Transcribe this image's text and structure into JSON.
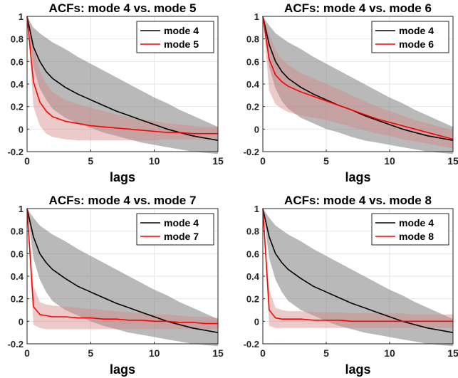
{
  "chart_data": [
    {
      "type": "line",
      "title": "ACFs: mode 4 vs. mode 5",
      "xlabel": "lags",
      "ylabel": "",
      "xlim": [
        0,
        15
      ],
      "ylim": [
        -0.2,
        1
      ],
      "xticks": [
        0,
        5,
        10,
        15
      ],
      "yticks": [
        -0.2,
        0,
        0.2,
        0.4,
        0.6,
        0.8,
        1
      ],
      "grid": true,
      "legend_position": "top-right",
      "x": [
        0,
        0.5,
        1,
        1.5,
        2,
        3,
        4,
        5,
        6,
        7,
        8,
        9,
        10,
        11,
        12,
        13,
        14,
        15
      ],
      "series": [
        {
          "name": "mode 4",
          "color": "#000000",
          "band_color": "#7f7f7f",
          "values": [
            1.0,
            0.73,
            0.6,
            0.51,
            0.45,
            0.37,
            0.31,
            0.26,
            0.21,
            0.16,
            0.12,
            0.08,
            0.04,
            0.0,
            -0.03,
            -0.06,
            -0.08,
            -0.1
          ],
          "lower": [
            1.0,
            0.55,
            0.36,
            0.26,
            0.18,
            0.1,
            0.05,
            0.01,
            -0.03,
            -0.06,
            -0.09,
            -0.12,
            -0.14,
            -0.16,
            -0.18,
            -0.2,
            -0.21,
            -0.22
          ],
          "upper": [
            1.0,
            0.9,
            0.85,
            0.81,
            0.77,
            0.71,
            0.64,
            0.58,
            0.52,
            0.46,
            0.4,
            0.34,
            0.28,
            0.23,
            0.17,
            0.12,
            0.07,
            0.02
          ]
        },
        {
          "name": "mode 5",
          "color": "#ff0000",
          "band_color": "#d48a8a",
          "values": [
            1.0,
            0.42,
            0.24,
            0.16,
            0.11,
            0.07,
            0.05,
            0.03,
            0.02,
            0.01,
            0.0,
            -0.01,
            -0.02,
            -0.03,
            -0.03,
            -0.04,
            -0.04,
            -0.04
          ],
          "lower": [
            1.0,
            0.2,
            0.03,
            -0.04,
            -0.07,
            -0.09,
            -0.1,
            -0.1,
            -0.1,
            -0.1,
            -0.1,
            -0.1,
            -0.1,
            -0.09,
            -0.09,
            -0.09,
            -0.09,
            -0.09
          ],
          "upper": [
            1.0,
            0.72,
            0.52,
            0.4,
            0.33,
            0.26,
            0.22,
            0.19,
            0.16,
            0.13,
            0.11,
            0.09,
            0.07,
            0.05,
            0.04,
            0.03,
            0.02,
            0.02
          ]
        }
      ]
    },
    {
      "type": "line",
      "title": "ACFs: mode 4 vs. mode 6",
      "xlabel": "lags",
      "ylabel": "",
      "xlim": [
        0,
        15
      ],
      "ylim": [
        -0.2,
        1
      ],
      "xticks": [
        0,
        5,
        10,
        15
      ],
      "yticks": [
        -0.2,
        0,
        0.2,
        0.4,
        0.6,
        0.8,
        1
      ],
      "grid": true,
      "legend_position": "top-right",
      "x": [
        0,
        0.5,
        1,
        1.5,
        2,
        3,
        4,
        5,
        6,
        7,
        8,
        9,
        10,
        11,
        12,
        13,
        14,
        15
      ],
      "series": [
        {
          "name": "mode 4",
          "color": "#000000",
          "band_color": "#7f7f7f",
          "values": [
            1.0,
            0.75,
            0.6,
            0.51,
            0.45,
            0.37,
            0.31,
            0.26,
            0.21,
            0.17,
            0.12,
            0.08,
            0.04,
            0.0,
            -0.03,
            -0.06,
            -0.08,
            -0.1
          ],
          "lower": [
            1.0,
            0.55,
            0.36,
            0.25,
            0.18,
            0.1,
            0.05,
            0.0,
            -0.03,
            -0.07,
            -0.1,
            -0.12,
            -0.14,
            -0.16,
            -0.18,
            -0.2,
            -0.21,
            -0.22
          ],
          "upper": [
            1.0,
            0.92,
            0.85,
            0.81,
            0.77,
            0.71,
            0.64,
            0.58,
            0.52,
            0.46,
            0.4,
            0.34,
            0.28,
            0.23,
            0.17,
            0.12,
            0.07,
            0.02
          ]
        },
        {
          "name": "mode 6",
          "color": "#ff0000",
          "band_color": "#d48a8a",
          "values": [
            1.0,
            0.62,
            0.48,
            0.42,
            0.38,
            0.33,
            0.29,
            0.25,
            0.21,
            0.17,
            0.13,
            0.09,
            0.06,
            0.03,
            0.0,
            -0.03,
            -0.06,
            -0.09
          ],
          "lower": [
            1.0,
            0.34,
            0.22,
            0.18,
            0.15,
            0.12,
            0.1,
            0.08,
            0.05,
            0.02,
            -0.01,
            -0.04,
            -0.06,
            -0.09,
            -0.11,
            -0.13,
            -0.15,
            -0.17
          ],
          "upper": [
            1.0,
            0.84,
            0.7,
            0.62,
            0.57,
            0.5,
            0.45,
            0.4,
            0.35,
            0.3,
            0.25,
            0.2,
            0.16,
            0.12,
            0.08,
            0.05,
            0.02,
            -0.01
          ]
        }
      ]
    },
    {
      "type": "line",
      "title": "ACFs: mode 4 vs. mode 7",
      "xlabel": "lags",
      "ylabel": "",
      "xlim": [
        0,
        15
      ],
      "ylim": [
        -0.2,
        1
      ],
      "xticks": [
        0,
        5,
        10,
        15
      ],
      "yticks": [
        -0.2,
        0,
        0.2,
        0.4,
        0.6,
        0.8,
        1
      ],
      "grid": true,
      "legend_position": "top-right",
      "x": [
        0,
        0.5,
        1,
        1.5,
        2,
        3,
        4,
        5,
        6,
        7,
        8,
        9,
        10,
        11,
        12,
        13,
        14,
        15
      ],
      "series": [
        {
          "name": "mode 4",
          "color": "#000000",
          "band_color": "#7f7f7f",
          "values": [
            1.0,
            0.75,
            0.6,
            0.52,
            0.46,
            0.38,
            0.31,
            0.26,
            0.21,
            0.16,
            0.12,
            0.08,
            0.04,
            0.0,
            -0.03,
            -0.06,
            -0.08,
            -0.1
          ],
          "lower": [
            1.0,
            0.56,
            0.37,
            0.26,
            0.18,
            0.1,
            0.05,
            0.0,
            -0.04,
            -0.07,
            -0.1,
            -0.12,
            -0.14,
            -0.16,
            -0.18,
            -0.2,
            -0.21,
            -0.22
          ],
          "upper": [
            1.0,
            0.92,
            0.85,
            0.81,
            0.77,
            0.71,
            0.64,
            0.58,
            0.52,
            0.46,
            0.4,
            0.34,
            0.28,
            0.23,
            0.17,
            0.12,
            0.07,
            0.02
          ]
        },
        {
          "name": "mode 7",
          "color": "#ff0000",
          "band_color": "#d48a8a",
          "values": [
            1.0,
            0.13,
            0.06,
            0.05,
            0.04,
            0.04,
            0.03,
            0.03,
            0.02,
            0.02,
            0.01,
            0.01,
            0.0,
            0.0,
            -0.01,
            -0.01,
            -0.02,
            -0.02
          ],
          "lower": [
            1.0,
            -0.03,
            -0.06,
            -0.07,
            -0.07,
            -0.07,
            -0.07,
            -0.07,
            -0.07,
            -0.07,
            -0.07,
            -0.07,
            -0.07,
            -0.07,
            -0.07,
            -0.07,
            -0.07,
            -0.07
          ],
          "upper": [
            1.0,
            0.32,
            0.17,
            0.15,
            0.14,
            0.13,
            0.12,
            0.11,
            0.1,
            0.09,
            0.08,
            0.07,
            0.06,
            0.06,
            0.05,
            0.04,
            0.04,
            0.03
          ]
        }
      ]
    },
    {
      "type": "line",
      "title": "ACFs: mode 4 vs. mode 8",
      "xlabel": "lags",
      "ylabel": "",
      "xlim": [
        0,
        15
      ],
      "ylim": [
        -0.2,
        1
      ],
      "xticks": [
        0,
        5,
        10,
        15
      ],
      "yticks": [
        -0.2,
        0,
        0.2,
        0.4,
        0.6,
        0.8,
        1
      ],
      "grid": true,
      "legend_position": "top-right",
      "x": [
        0,
        0.5,
        1,
        1.5,
        2,
        3,
        4,
        5,
        6,
        7,
        8,
        9,
        10,
        11,
        12,
        13,
        14,
        15
      ],
      "series": [
        {
          "name": "mode 4",
          "color": "#000000",
          "band_color": "#7f7f7f",
          "values": [
            1.0,
            0.75,
            0.6,
            0.52,
            0.46,
            0.38,
            0.31,
            0.26,
            0.21,
            0.16,
            0.12,
            0.08,
            0.04,
            0.0,
            -0.03,
            -0.06,
            -0.08,
            -0.1
          ],
          "lower": [
            1.0,
            0.56,
            0.37,
            0.26,
            0.18,
            0.1,
            0.05,
            0.0,
            -0.04,
            -0.07,
            -0.1,
            -0.12,
            -0.14,
            -0.16,
            -0.18,
            -0.2,
            -0.21,
            -0.22
          ],
          "upper": [
            1.0,
            0.92,
            0.85,
            0.81,
            0.77,
            0.71,
            0.64,
            0.58,
            0.52,
            0.46,
            0.4,
            0.34,
            0.28,
            0.23,
            0.17,
            0.12,
            0.07,
            0.02
          ]
        },
        {
          "name": "mode 8",
          "color": "#ff0000",
          "band_color": "#d48a8a",
          "values": [
            1.0,
            0.1,
            0.03,
            0.02,
            0.02,
            0.02,
            0.01,
            0.01,
            0.01,
            0.0,
            0.0,
            0.0,
            0.0,
            0.0,
            0.0,
            0.0,
            0.0,
            0.0
          ],
          "lower": [
            1.0,
            -0.04,
            -0.06,
            -0.06,
            -0.06,
            -0.06,
            -0.06,
            -0.06,
            -0.06,
            -0.06,
            -0.06,
            -0.06,
            -0.06,
            -0.06,
            -0.06,
            -0.06,
            -0.06,
            -0.06
          ],
          "upper": [
            1.0,
            0.28,
            0.12,
            0.1,
            0.09,
            0.09,
            0.08,
            0.08,
            0.08,
            0.07,
            0.07,
            0.07,
            0.07,
            0.07,
            0.06,
            0.06,
            0.06,
            0.06
          ]
        }
      ]
    }
  ]
}
